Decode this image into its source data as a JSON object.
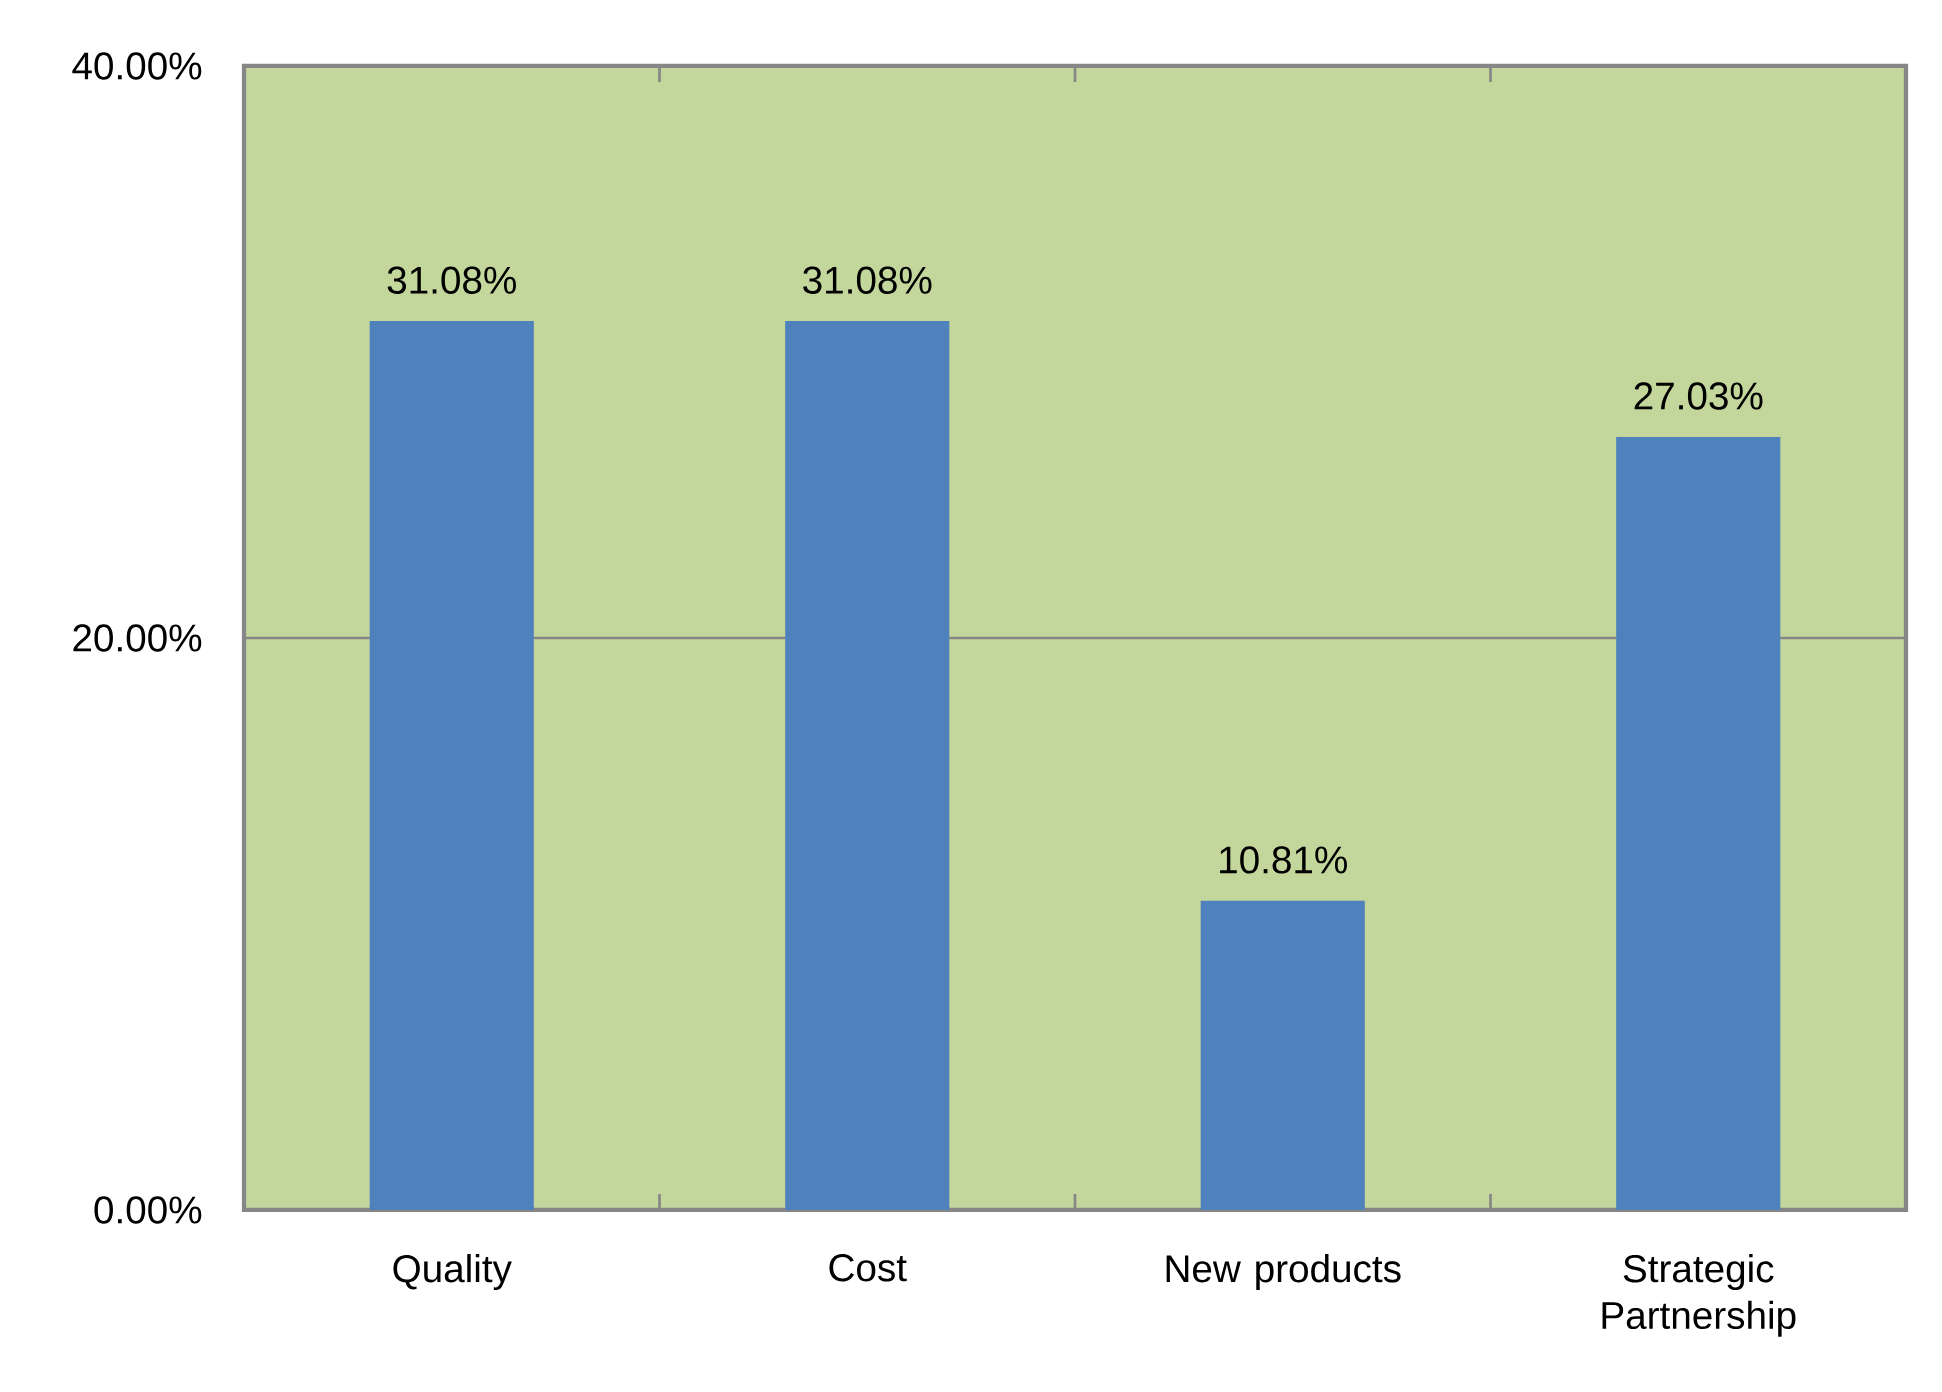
{
  "chart_data": {
    "type": "bar",
    "categories": [
      "Quality",
      "Cost",
      "New products",
      "Strategic Partnership"
    ],
    "values": [
      31.08,
      31.08,
      10.81,
      27.03
    ],
    "value_labels": [
      "31.08%",
      "31.08%",
      "10.81%",
      "27.03%"
    ],
    "color": "#4f81bd",
    "ylim": [
      0,
      40
    ],
    "yticks": [
      {
        "value": 0,
        "label": "0.00%"
      },
      {
        "value": 20,
        "label": "20.00%"
      },
      {
        "value": 40,
        "label": "40.00%"
      }
    ],
    "grid": "y"
  }
}
